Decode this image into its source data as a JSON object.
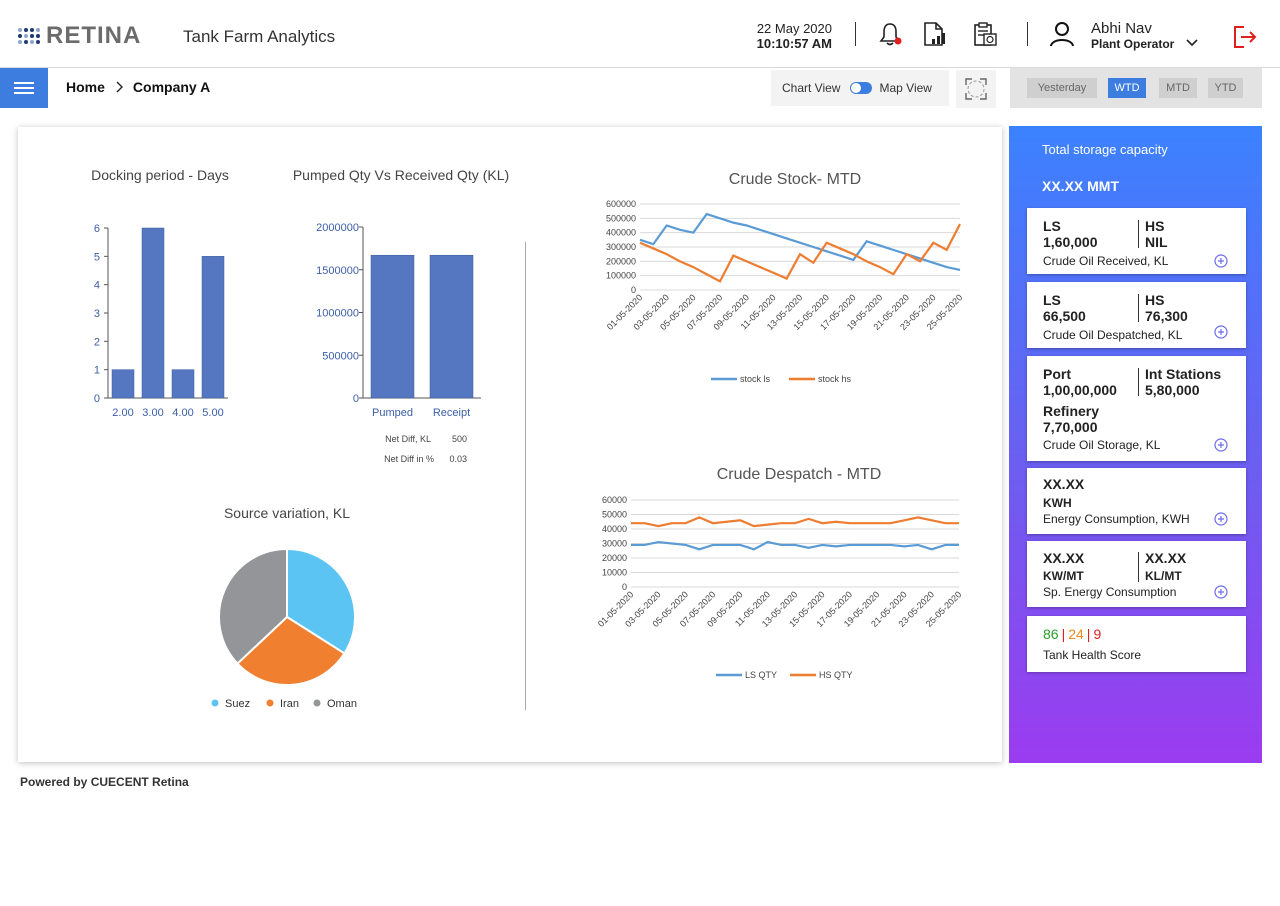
{
  "header": {
    "logo_text": "RETINA",
    "app_title": "Tank Farm Analytics",
    "date": "22 May 2020",
    "time": "10:10:57 AM",
    "icons": [
      "bell-icon",
      "report-icon",
      "clipboard-icon"
    ],
    "user_name": "Abhi Nav",
    "user_role": "Plant Operator"
  },
  "nav": {
    "breadcrumb": [
      "Home",
      "Company A"
    ],
    "chart_view_label": "Chart View",
    "map_view_label": "Map View",
    "periods": [
      "Yesterday",
      "WTD",
      "MTD",
      "YTD"
    ],
    "active_period": "WTD"
  },
  "summary": {
    "net_diff_label": "Net Diff, KL",
    "net_diff_value": "500",
    "net_diff_pct_label": "Net Diff in %",
    "net_diff_pct_value": "0.03"
  },
  "side": {
    "title": "Total storage capacity",
    "total": "XX.XX MMT",
    "cards": {
      "received": {
        "l1": "LS",
        "v1": "1,60,000",
        "l2": "HS",
        "v2": "NIL",
        "caption": "Crude Oil Received, KL"
      },
      "despatched": {
        "l1": "LS",
        "v1": "66,500",
        "l2": "HS",
        "v2": "76,300",
        "caption": "Crude Oil Despatched, KL"
      },
      "storage": {
        "l1": "Port",
        "v1": "1,00,00,000",
        "l2": "Int Stations",
        "v2": "5,80,000",
        "l3": "Refinery",
        "v3": "7,70,000",
        "caption": "Crude Oil Storage, KL"
      },
      "energy": {
        "v1": "XX.XX",
        "u1": "KWH",
        "caption": "Energy Consumption, KWH"
      },
      "sp_energy": {
        "v1": "XX.XX",
        "u1": "KW/MT",
        "v2": "XX.XX",
        "u2": "KL/MT",
        "caption": "Sp. Energy Consumption"
      },
      "health": {
        "green": "86",
        "orange": "24",
        "red": "9",
        "sep": "|",
        "caption": "Tank Health Score"
      }
    }
  },
  "footer": "Powered by CUECENT Retina",
  "chart_data": [
    {
      "type": "bar",
      "title": "Docking period - Days",
      "categories": [
        "2.00",
        "3.00",
        "4.00",
        "5.00"
      ],
      "values": [
        1,
        6,
        1,
        5
      ],
      "yticks": [
        "0",
        "1",
        "2",
        "3",
        "4",
        "5",
        "6"
      ],
      "ylim": [
        0,
        6
      ],
      "color": "#5577c1"
    },
    {
      "type": "bar",
      "title": "Pumped Qty Vs Received Qty (KL)",
      "categories": [
        "Pumped",
        "Receipt"
      ],
      "values": [
        1670000,
        1670000
      ],
      "yticks": [
        "0",
        "500000",
        "1000000",
        "1500000",
        "2000000"
      ],
      "ylim": [
        0,
        2000000
      ],
      "color": "#5577c1"
    },
    {
      "type": "pie",
      "title": "Source variation, KL",
      "labels": [
        "Suez",
        "Iran",
        "Oman"
      ],
      "values": [
        34,
        29,
        37
      ],
      "colors": [
        "#5bc4f2",
        "#f08030",
        "#939598"
      ]
    },
    {
      "type": "line",
      "title": "Crude Stock- MTD",
      "x": [
        "01-05-2020",
        "02-05-2020",
        "03-05-2020",
        "04-05-2020",
        "05-05-2020",
        "06-05-2020",
        "07-05-2020",
        "08-05-2020",
        "09-05-2020",
        "10-05-2020",
        "11-05-2020",
        "12-05-2020",
        "13-05-2020",
        "14-05-2020",
        "15-05-2020",
        "16-05-2020",
        "17-05-2020",
        "18-05-2020",
        "19-05-2020",
        "20-05-2020",
        "21-05-2020",
        "22-05-2020",
        "23-05-2020",
        "24-05-2020",
        "25-05-2020"
      ],
      "xticks": [
        "01-05-2020",
        "03-05-2020",
        "05-05-2020",
        "07-05-2020",
        "09-05-2020",
        "11-05-2020",
        "13-05-2020",
        "15-05-2020",
        "17-05-2020",
        "19-05-2020",
        "21-05-2020",
        "23-05-2020",
        "25-05-2020"
      ],
      "yticks": [
        "0",
        "100000",
        "200000",
        "300000",
        "400000",
        "500000",
        "600000"
      ],
      "ylim": [
        0,
        600000
      ],
      "series": [
        {
          "name": "stock ls",
          "color": "#5b9bd5",
          "values": [
            350000,
            320000,
            450000,
            420000,
            400000,
            530000,
            500000,
            470000,
            450000,
            420000,
            390000,
            360000,
            330000,
            300000,
            270000,
            240000,
            210000,
            340000,
            310000,
            280000,
            250000,
            220000,
            190000,
            160000,
            140000
          ]
        },
        {
          "name": "stock hs",
          "color": "#ed7d31",
          "values": [
            330000,
            290000,
            250000,
            200000,
            160000,
            110000,
            60000,
            240000,
            200000,
            160000,
            120000,
            80000,
            250000,
            190000,
            330000,
            290000,
            250000,
            200000,
            160000,
            110000,
            250000,
            200000,
            330000,
            280000,
            460000
          ]
        }
      ]
    },
    {
      "type": "line",
      "title": "Crude Despatch - MTD",
      "x": [
        "01-05-2020",
        "02-05-2020",
        "03-05-2020",
        "04-05-2020",
        "05-05-2020",
        "06-05-2020",
        "07-05-2020",
        "08-05-2020",
        "09-05-2020",
        "10-05-2020",
        "11-05-2020",
        "12-05-2020",
        "13-05-2020",
        "14-05-2020",
        "15-05-2020",
        "16-05-2020",
        "17-05-2020",
        "18-05-2020",
        "19-05-2020",
        "20-05-2020",
        "21-05-2020",
        "22-05-2020",
        "23-05-2020",
        "24-05-2020",
        "25-05-2020"
      ],
      "xticks": [
        "01-05-2020",
        "03-05-2020",
        "05-05-2020",
        "07-05-2020",
        "09-05-2020",
        "11-05-2020",
        "13-05-2020",
        "15-05-2020",
        "17-05-2020",
        "19-05-2020",
        "21-05-2020",
        "23-05-2020",
        "25-05-2020"
      ],
      "yticks": [
        "0",
        "10000",
        "20000",
        "30000",
        "40000",
        "50000",
        "60000"
      ],
      "ylim": [
        0,
        60000
      ],
      "series": [
        {
          "name": "LS QTY",
          "color": "#5b9bd5",
          "values": [
            29000,
            29000,
            31000,
            30000,
            29000,
            26000,
            29000,
            29000,
            29000,
            26000,
            31000,
            29000,
            29000,
            27000,
            29000,
            28000,
            29000,
            29000,
            29000,
            29000,
            28000,
            29000,
            26000,
            29000,
            29000
          ]
        },
        {
          "name": "HS QTY",
          "color": "#ed7d31",
          "values": [
            44000,
            44000,
            42000,
            44000,
            44000,
            48000,
            44000,
            45000,
            46000,
            42000,
            43000,
            44000,
            44000,
            47000,
            44000,
            45000,
            44000,
            44000,
            44000,
            44000,
            46000,
            48000,
            46000,
            44000,
            44000
          ]
        }
      ]
    }
  ]
}
